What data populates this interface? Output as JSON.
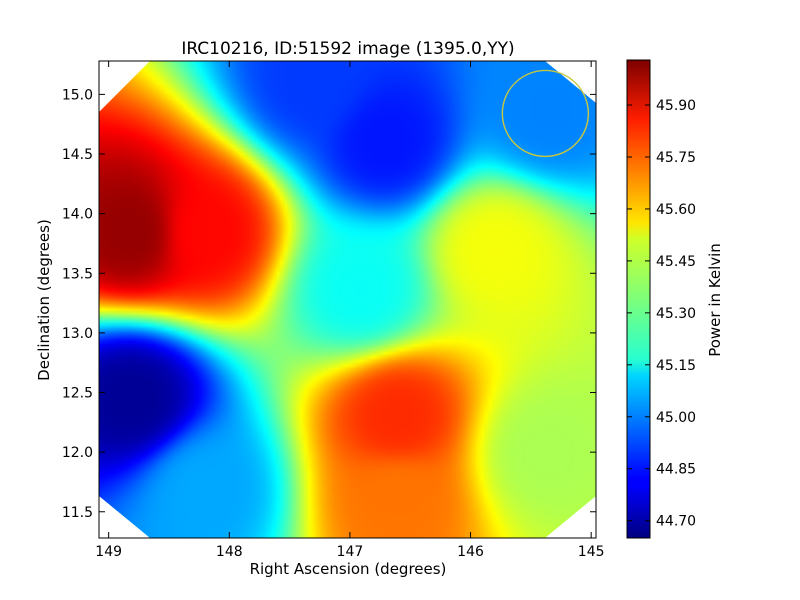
{
  "chart_data": {
    "type": "heatmap",
    "title": "IRC10216, ID:51592 image (1395.0,YY)",
    "xlabel": "Right Ascension (degrees)",
    "ylabel": "Declination (degrees)",
    "xlim": [
      149.08,
      144.96
    ],
    "ylim": [
      11.28,
      15.28
    ],
    "x_ticks": [
      149,
      148,
      147,
      146,
      145
    ],
    "x_tick_labels": [
      "149",
      "148",
      "147",
      "146",
      "145"
    ],
    "y_ticks": [
      11.5,
      12.0,
      12.5,
      13.0,
      13.5,
      14.0,
      14.5,
      15.0
    ],
    "y_tick_labels": [
      "11.5",
      "12.0",
      "12.5",
      "13.0",
      "13.5",
      "14.0",
      "14.5",
      "15.0"
    ],
    "x_axis_inverted": true,
    "grid": false,
    "colormap": "jet",
    "colorbar": {
      "label": "Power in Kelvin",
      "range": [
        44.65,
        46.03
      ],
      "ticks": [
        44.7,
        44.85,
        45.0,
        45.15,
        45.3,
        45.45,
        45.6,
        45.75,
        45.9
      ],
      "tick_labels": [
        "44.70",
        "44.85",
        "45.00",
        "45.15",
        "45.30",
        "45.45",
        "45.60",
        "45.75",
        "45.90"
      ]
    },
    "features": [
      {
        "ra": 148.8,
        "dec": 13.85,
        "value": 46.0
      },
      {
        "ra": 148.2,
        "dec": 13.85,
        "value": 45.85
      },
      {
        "ra": 148.8,
        "dec": 12.45,
        "value": 44.68
      },
      {
        "ra": 146.6,
        "dec": 12.3,
        "value": 45.8
      },
      {
        "ra": 146.6,
        "dec": 11.6,
        "value": 45.7
      },
      {
        "ra": 146.7,
        "dec": 14.6,
        "value": 44.85
      },
      {
        "ra": 147.3,
        "dec": 15.1,
        "value": 44.9
      },
      {
        "ra": 145.8,
        "dec": 13.7,
        "value": 45.5
      },
      {
        "ra": 145.35,
        "dec": 14.85,
        "value": 45.0
      },
      {
        "ra": 146.9,
        "dec": 13.35,
        "value": 45.18
      },
      {
        "ra": 145.4,
        "dec": 12.0,
        "value": 45.4
      },
      {
        "ra": 148.2,
        "dec": 11.7,
        "value": 45.05
      }
    ],
    "beam_marker": {
      "shape": "circle",
      "ra": 145.38,
      "dec": 14.84,
      "color": "#c8c840"
    }
  }
}
